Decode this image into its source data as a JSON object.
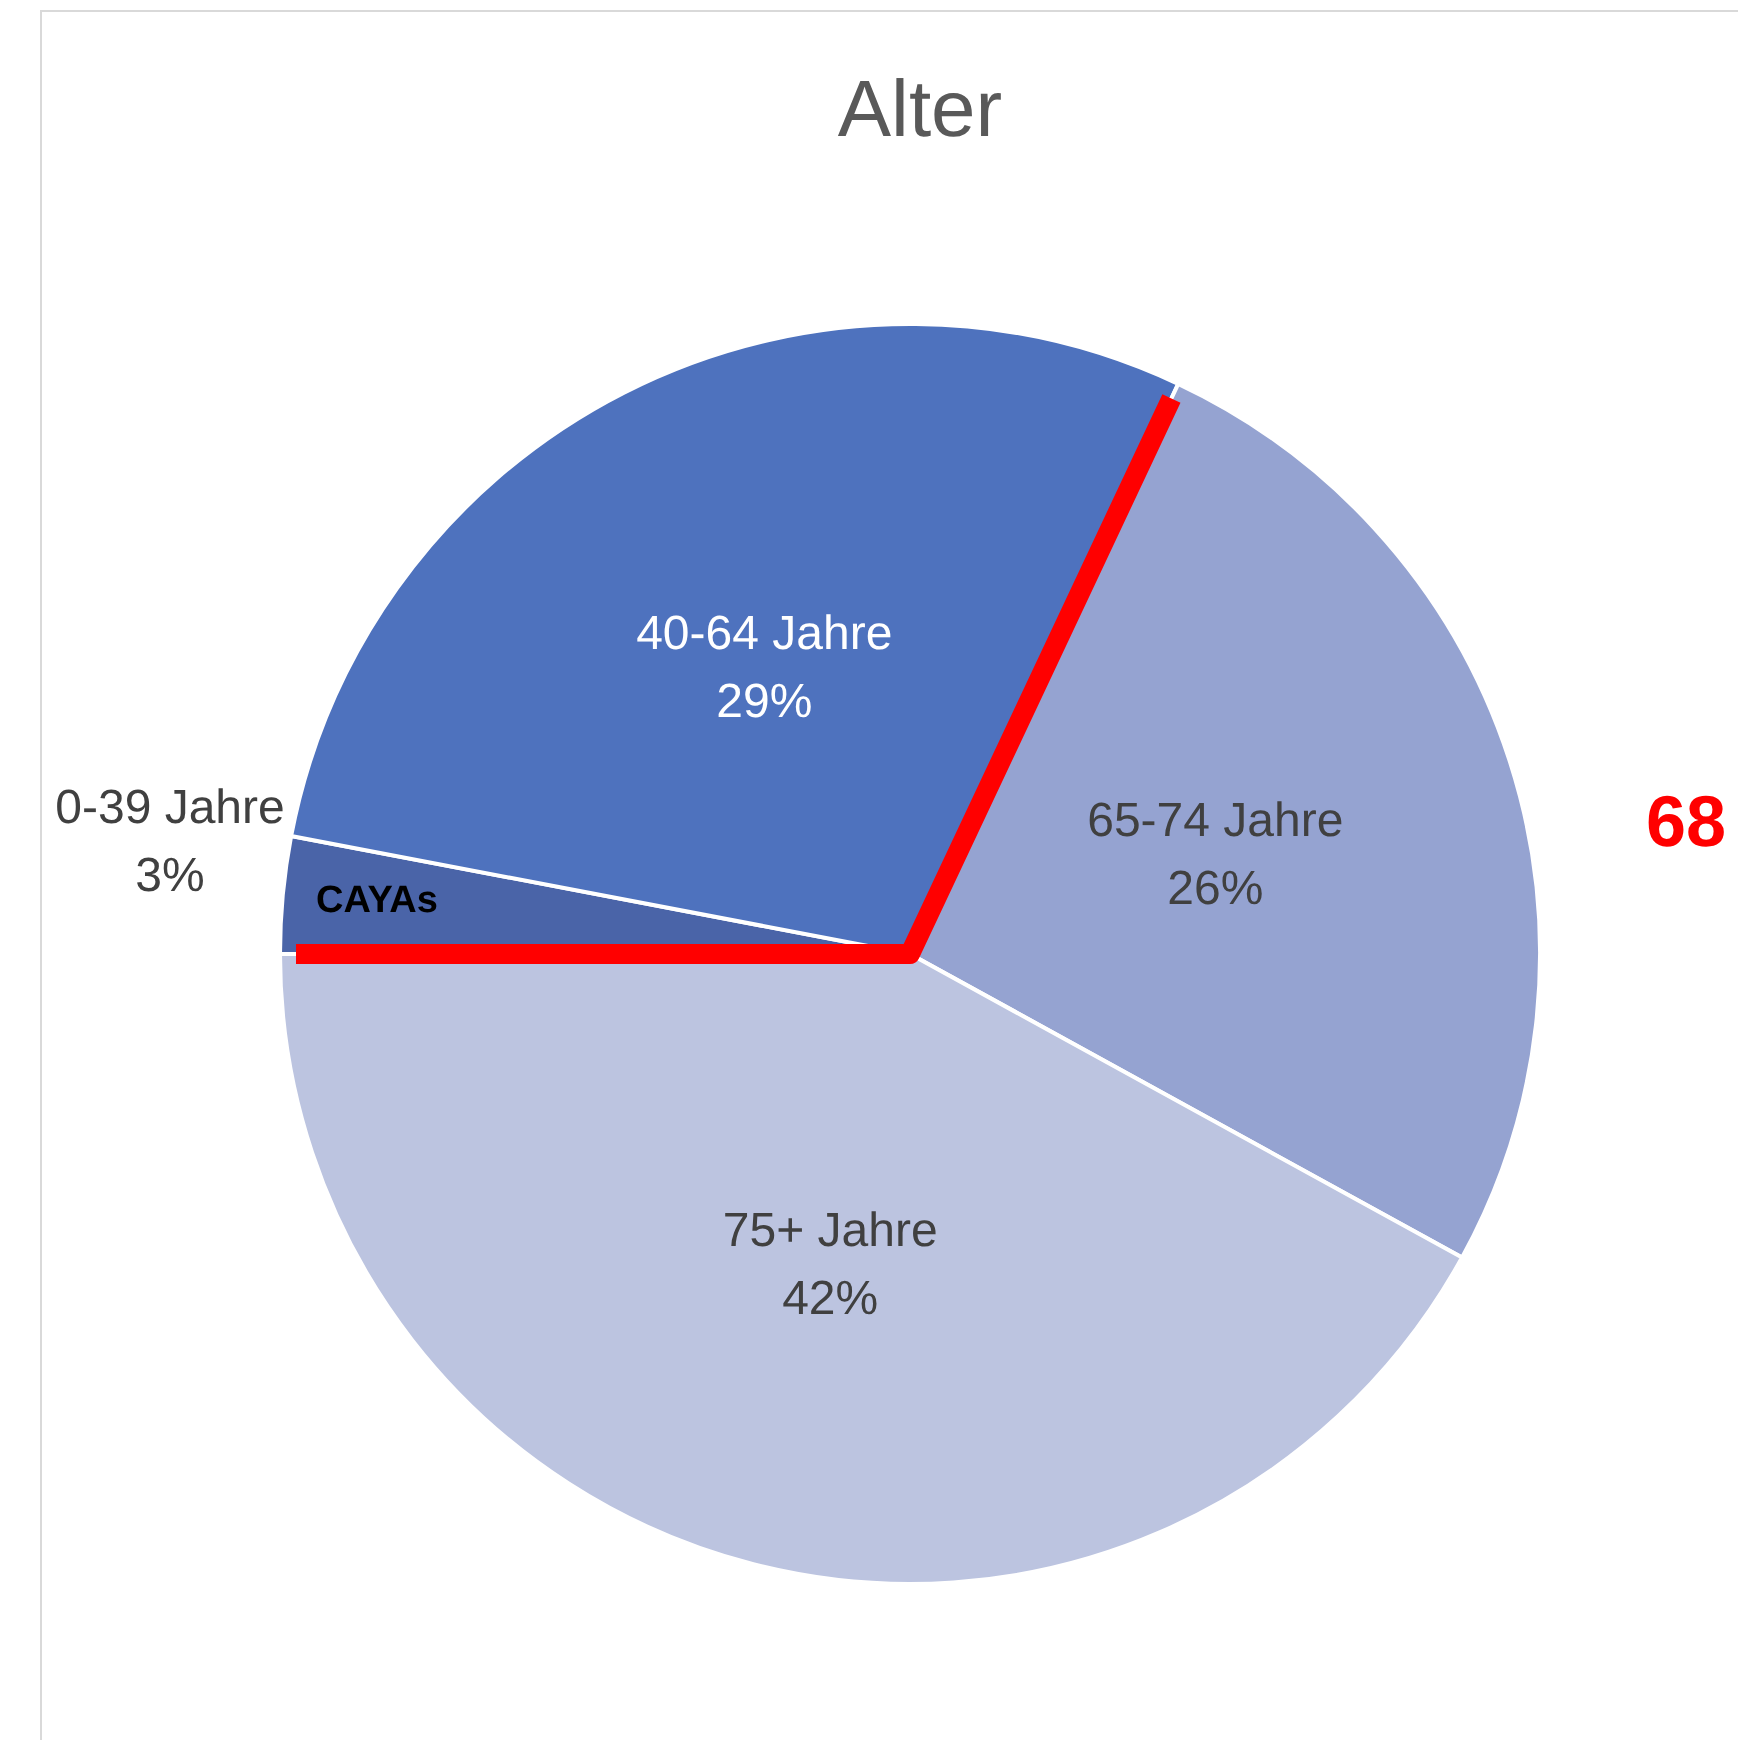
{
  "chart_data": {
    "type": "pie",
    "title": "Alter",
    "categories": [
      "0-39 Jahre",
      "40-64 Jahre",
      "65-74 Jahre",
      "75+ Jahre"
    ],
    "values": [
      3,
      29,
      26,
      42
    ],
    "colors": [
      "#4a64a8",
      "#4e72be",
      "#95a3d1",
      "#bcc4e0"
    ],
    "value_labels": [
      "3%",
      "29%",
      "26%",
      "42%"
    ],
    "legend": false,
    "annotations": [
      "CAYAs",
      "68"
    ]
  }
}
